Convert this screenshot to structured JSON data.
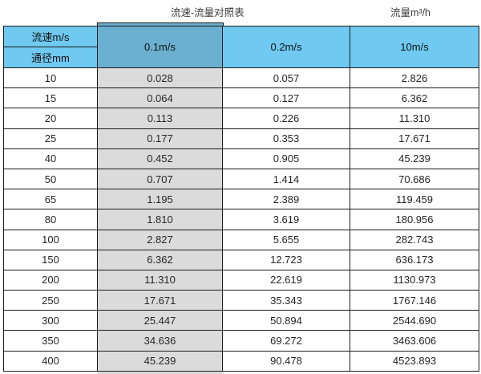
{
  "page": {
    "title": "流速-流量对照表",
    "unit_label": "流量m³/h"
  },
  "colors": {
    "header_light_blue": "#6FC9F0",
    "header_dark_blue": "#6BB0D0",
    "highlight_gray": "#DBDBDB",
    "border_dark": "#1C1C1C"
  },
  "table": {
    "corner_top_label": "流速m/s",
    "corner_bottom_label": "通径mm",
    "velocity_headers": [
      "0.1m/s",
      "0.2m/s",
      "10m/s"
    ],
    "rows": [
      {
        "diameter": "10",
        "values": [
          "0.028",
          "0.057",
          "2.826"
        ]
      },
      {
        "diameter": "15",
        "values": [
          "0.064",
          "0.127",
          "6.362"
        ]
      },
      {
        "diameter": "20",
        "values": [
          "0.113",
          "0.226",
          "11.310"
        ]
      },
      {
        "diameter": "25",
        "values": [
          "0.177",
          "0.353",
          "17.671"
        ]
      },
      {
        "diameter": "40",
        "values": [
          "0.452",
          "0.905",
          "45.239"
        ]
      },
      {
        "diameter": "50",
        "values": [
          "0.707",
          "1.414",
          "70.686"
        ]
      },
      {
        "diameter": "65",
        "values": [
          "1.195",
          "2.389",
          "119.459"
        ]
      },
      {
        "diameter": "80",
        "values": [
          "1.810",
          "3.619",
          "180.956"
        ]
      },
      {
        "diameter": "100",
        "values": [
          "2.827",
          "5.655",
          "282.743"
        ]
      },
      {
        "diameter": "150",
        "values": [
          "6.362",
          "12.723",
          "636.173"
        ]
      },
      {
        "diameter": "200",
        "values": [
          "11.310",
          "22.619",
          "1130.973"
        ]
      },
      {
        "diameter": "250",
        "values": [
          "17.671",
          "35.343",
          "1767.146"
        ]
      },
      {
        "diameter": "300",
        "values": [
          "25.447",
          "50.894",
          "2544.690"
        ]
      },
      {
        "diameter": "350",
        "values": [
          "34.636",
          "69.272",
          "3463.606"
        ]
      },
      {
        "diameter": "400",
        "values": [
          "45.239",
          "90.478",
          "4523.893"
        ]
      }
    ]
  },
  "chart_data": {
    "type": "table",
    "title": "流速-流量对照表",
    "unit_label": "流量m³/h",
    "columns": [
      "通径mm",
      "0.1m/s",
      "0.2m/s",
      "10m/s"
    ],
    "rows": [
      [
        10,
        0.028,
        0.057,
        2.826
      ],
      [
        15,
        0.064,
        0.127,
        6.362
      ],
      [
        20,
        0.113,
        0.226,
        11.31
      ],
      [
        25,
        0.177,
        0.353,
        17.671
      ],
      [
        40,
        0.452,
        0.905,
        45.239
      ],
      [
        50,
        0.707,
        1.414,
        70.686
      ],
      [
        65,
        1.195,
        2.389,
        119.459
      ],
      [
        80,
        1.81,
        3.619,
        180.956
      ],
      [
        100,
        2.827,
        5.655,
        282.743
      ],
      [
        150,
        6.362,
        12.723,
        636.173
      ],
      [
        200,
        11.31,
        22.619,
        1130.973
      ],
      [
        250,
        17.671,
        35.343,
        1767.146
      ],
      [
        300,
        25.447,
        50.894,
        2544.69
      ],
      [
        350,
        34.636,
        69.272,
        3463.606
      ],
      [
        400,
        45.239,
        90.478,
        4523.893
      ]
    ]
  }
}
